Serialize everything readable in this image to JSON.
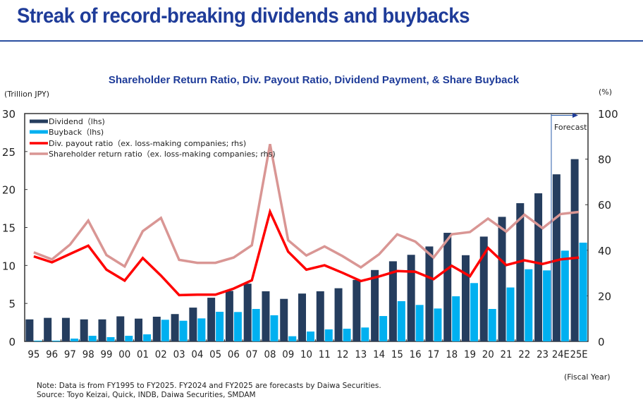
{
  "header": {
    "title": "Streak of record-breaking dividends and buybacks"
  },
  "chart_data": {
    "type": "bar",
    "title": "Shareholder Return Ratio, Div. Payout Ratio, Dividend Payment, & Share Buyback",
    "ylabel_left": "(Trillion JPY)",
    "ylabel_right": "(%)",
    "xlabel": "(Fiscal Year)",
    "ylim_left": [
      0,
      30
    ],
    "ylim_right": [
      0,
      100
    ],
    "yticks_left": [
      "0",
      "5",
      "10",
      "15",
      "20",
      "25",
      "30"
    ],
    "yticks_right": [
      "0",
      "20",
      "40",
      "60",
      "80",
      "100"
    ],
    "categories": [
      "95",
      "96",
      "97",
      "98",
      "99",
      "00",
      "01",
      "02",
      "03",
      "04",
      "05",
      "06",
      "07",
      "08",
      "09",
      "10",
      "11",
      "12",
      "13",
      "14",
      "15",
      "16",
      "17",
      "18",
      "19",
      "20",
      "21",
      "22",
      "23",
      "24E",
      "25E"
    ],
    "forecast_label": "Forecast",
    "forecast_start": "24E",
    "legend_position": "top-left",
    "series": [
      {
        "name": "Dividend（lhs)",
        "type": "bar",
        "axis": "left",
        "color": "#253d5e",
        "values": [
          2.9,
          3.1,
          3.1,
          2.9,
          2.9,
          3.3,
          3.0,
          3.25,
          3.6,
          4.45,
          5.75,
          6.65,
          7.6,
          6.6,
          5.6,
          6.3,
          6.6,
          7.0,
          8.1,
          9.4,
          10.55,
          11.4,
          12.5,
          14.3,
          11.35,
          13.8,
          16.4,
          18.2,
          19.5,
          22.0,
          24.0
        ]
      },
      {
        "name": "Buyback（lhs)",
        "type": "bar",
        "axis": "left",
        "color": "#00b0f0",
        "values": [
          0.1,
          0.1,
          0.37,
          0.74,
          0.56,
          0.74,
          0.93,
          2.85,
          2.72,
          3.03,
          3.9,
          3.87,
          4.27,
          3.44,
          0.68,
          1.3,
          1.58,
          1.67,
          1.83,
          3.34,
          5.3,
          4.8,
          4.33,
          5.94,
          7.68,
          4.27,
          7.1,
          9.5,
          9.35,
          11.95,
          13.0
        ]
      },
      {
        "name": "Div. payout ratio（ex. loss-making companies; rhs)",
        "type": "line",
        "axis": "right",
        "color": "#ff0000",
        "values": [
          37.3,
          34.7,
          38.4,
          42.0,
          31.5,
          26.7,
          36.6,
          28.9,
          20.3,
          20.5,
          20.5,
          23.2,
          26.8,
          56.9,
          39.4,
          31.5,
          33.4,
          30.1,
          26.5,
          28.5,
          30.9,
          30.6,
          27.3,
          33.2,
          28.6,
          41.0,
          33.5,
          35.6,
          34.0,
          36.0,
          36.8
        ]
      },
      {
        "name": "Shareholder return ratio（ex. loss-making companies; rhs)",
        "type": "line",
        "axis": "right",
        "color": "#d99694",
        "values": [
          39.1,
          36.0,
          42.5,
          53.0,
          37.9,
          32.9,
          48.4,
          54.2,
          35.8,
          34.5,
          34.5,
          36.8,
          42.2,
          86.6,
          44.4,
          37.7,
          41.7,
          37.4,
          32.5,
          38.2,
          47.0,
          43.8,
          36.8,
          47.0,
          48.0,
          53.9,
          48.2,
          55.6,
          49.7,
          55.9,
          56.8
        ]
      }
    ]
  },
  "notes": {
    "note": "Note: Data is from FY1995 to FY2025. FY2024 and FY2025 are forecasts by Daiwa Securities.",
    "source": "Source: Toyo Keizai, Quick, INDB, Daiwa Securities, SMDAM"
  }
}
